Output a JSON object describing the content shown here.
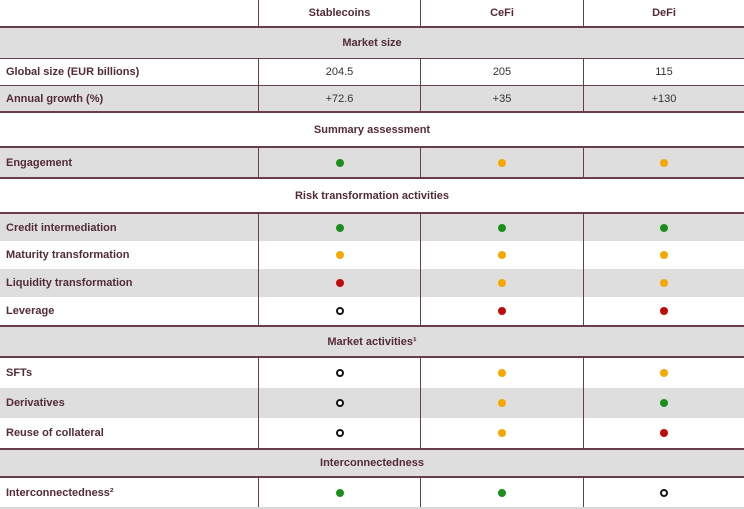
{
  "colors": {
    "green": "#1b8f1e",
    "amber": "#f5a800",
    "red": "#c00a0a",
    "open": "#ffffff",
    "border_maroon": "#6b3c4b",
    "band_gray": "#dedede"
  },
  "chart_data": {
    "type": "table",
    "title": "",
    "columns": [
      "",
      "Stablecoins",
      "CeFi",
      "DeFi"
    ],
    "legend_note": "dots: green / amber / red filled circles and open circle",
    "sections": [
      {
        "header": "Market size",
        "rows": [
          {
            "label": "Global size (EUR billions)",
            "values": [
              "204.5",
              "205",
              "115"
            ]
          },
          {
            "label": "Annual growth (%)",
            "values": [
              "+72.6",
              "+35",
              "+130"
            ]
          }
        ]
      },
      {
        "header": "Summary assessment",
        "rows": [
          {
            "label": "Engagement",
            "dots": [
              "green",
              "amber",
              "amber"
            ]
          }
        ]
      },
      {
        "header": "Risk transformation activities",
        "rows": [
          {
            "label": "Credit intermediation",
            "dots": [
              "green",
              "green",
              "green"
            ]
          },
          {
            "label": "Maturity transformation",
            "dots": [
              "amber",
              "amber",
              "amber"
            ]
          },
          {
            "label": "Liquidity transformation",
            "dots": [
              "red",
              "amber",
              "amber"
            ]
          },
          {
            "label": "Leverage",
            "dots": [
              "open",
              "red",
              "red"
            ]
          }
        ]
      },
      {
        "header": "Market activities¹",
        "rows": [
          {
            "label": "SFTs",
            "dots": [
              "open",
              "amber",
              "amber"
            ]
          },
          {
            "label": "Derivatives",
            "dots": [
              "open",
              "amber",
              "green"
            ]
          },
          {
            "label": "Reuse of collateral",
            "dots": [
              "open",
              "amber",
              "red"
            ]
          }
        ]
      },
      {
        "header": "Interconnectedness",
        "rows": [
          {
            "label": "Interconnectedness²",
            "dots": [
              "green",
              "green",
              "open"
            ]
          }
        ]
      }
    ]
  }
}
